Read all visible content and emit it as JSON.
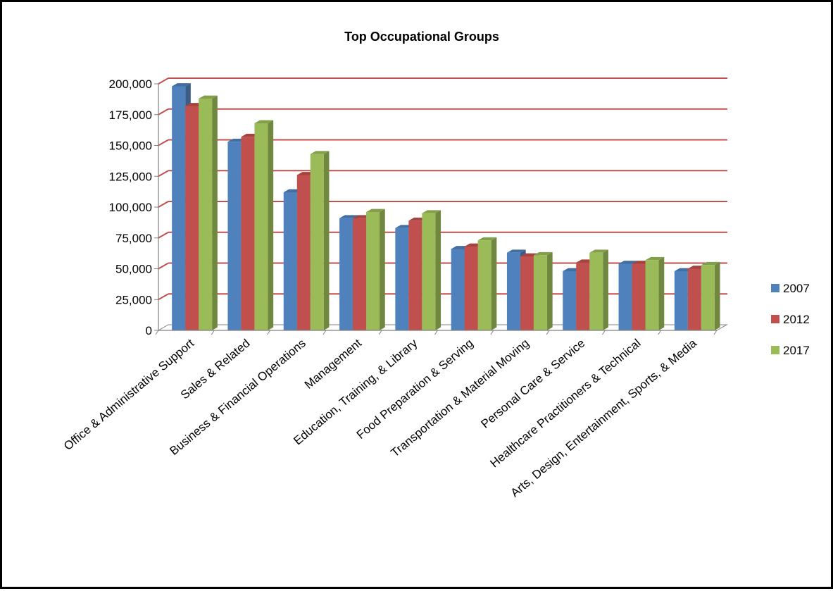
{
  "chart_data": {
    "type": "bar",
    "title": "Top Occupational Groups",
    "xlabel": "",
    "ylabel": "",
    "ylim": [
      0,
      200000
    ],
    "yticks": [
      "0",
      "25,000",
      "50,000",
      "75,000",
      "100,000",
      "125,000",
      "150,000",
      "175,000",
      "200,000"
    ],
    "grid": true,
    "legend_position": "right",
    "categories": [
      "Office & Administrative Support",
      "Sales & Related",
      "Business & Financial Operations",
      "Management",
      "Education, Training, & Library",
      "Food Preparation & Serving",
      "Transportation & Material Moving",
      "Personal Care & Service",
      "Healthcare Practitioners & Technical",
      "Arts, Design, Entertainment, Sports, & Media"
    ],
    "series": [
      {
        "name": "2007",
        "color": "#4f81bd",
        "values": [
          198000,
          153000,
          112000,
          91000,
          83000,
          66000,
          63000,
          48000,
          54000,
          48000
        ]
      },
      {
        "name": "2012",
        "color": "#c0504d",
        "values": [
          182000,
          157000,
          126000,
          91000,
          89000,
          68000,
          60000,
          55000,
          54000,
          50000
        ]
      },
      {
        "name": "2017",
        "color": "#9bbb59",
        "values": [
          188000,
          168000,
          143000,
          96000,
          95000,
          73000,
          61000,
          63000,
          57000,
          53000
        ]
      }
    ]
  }
}
